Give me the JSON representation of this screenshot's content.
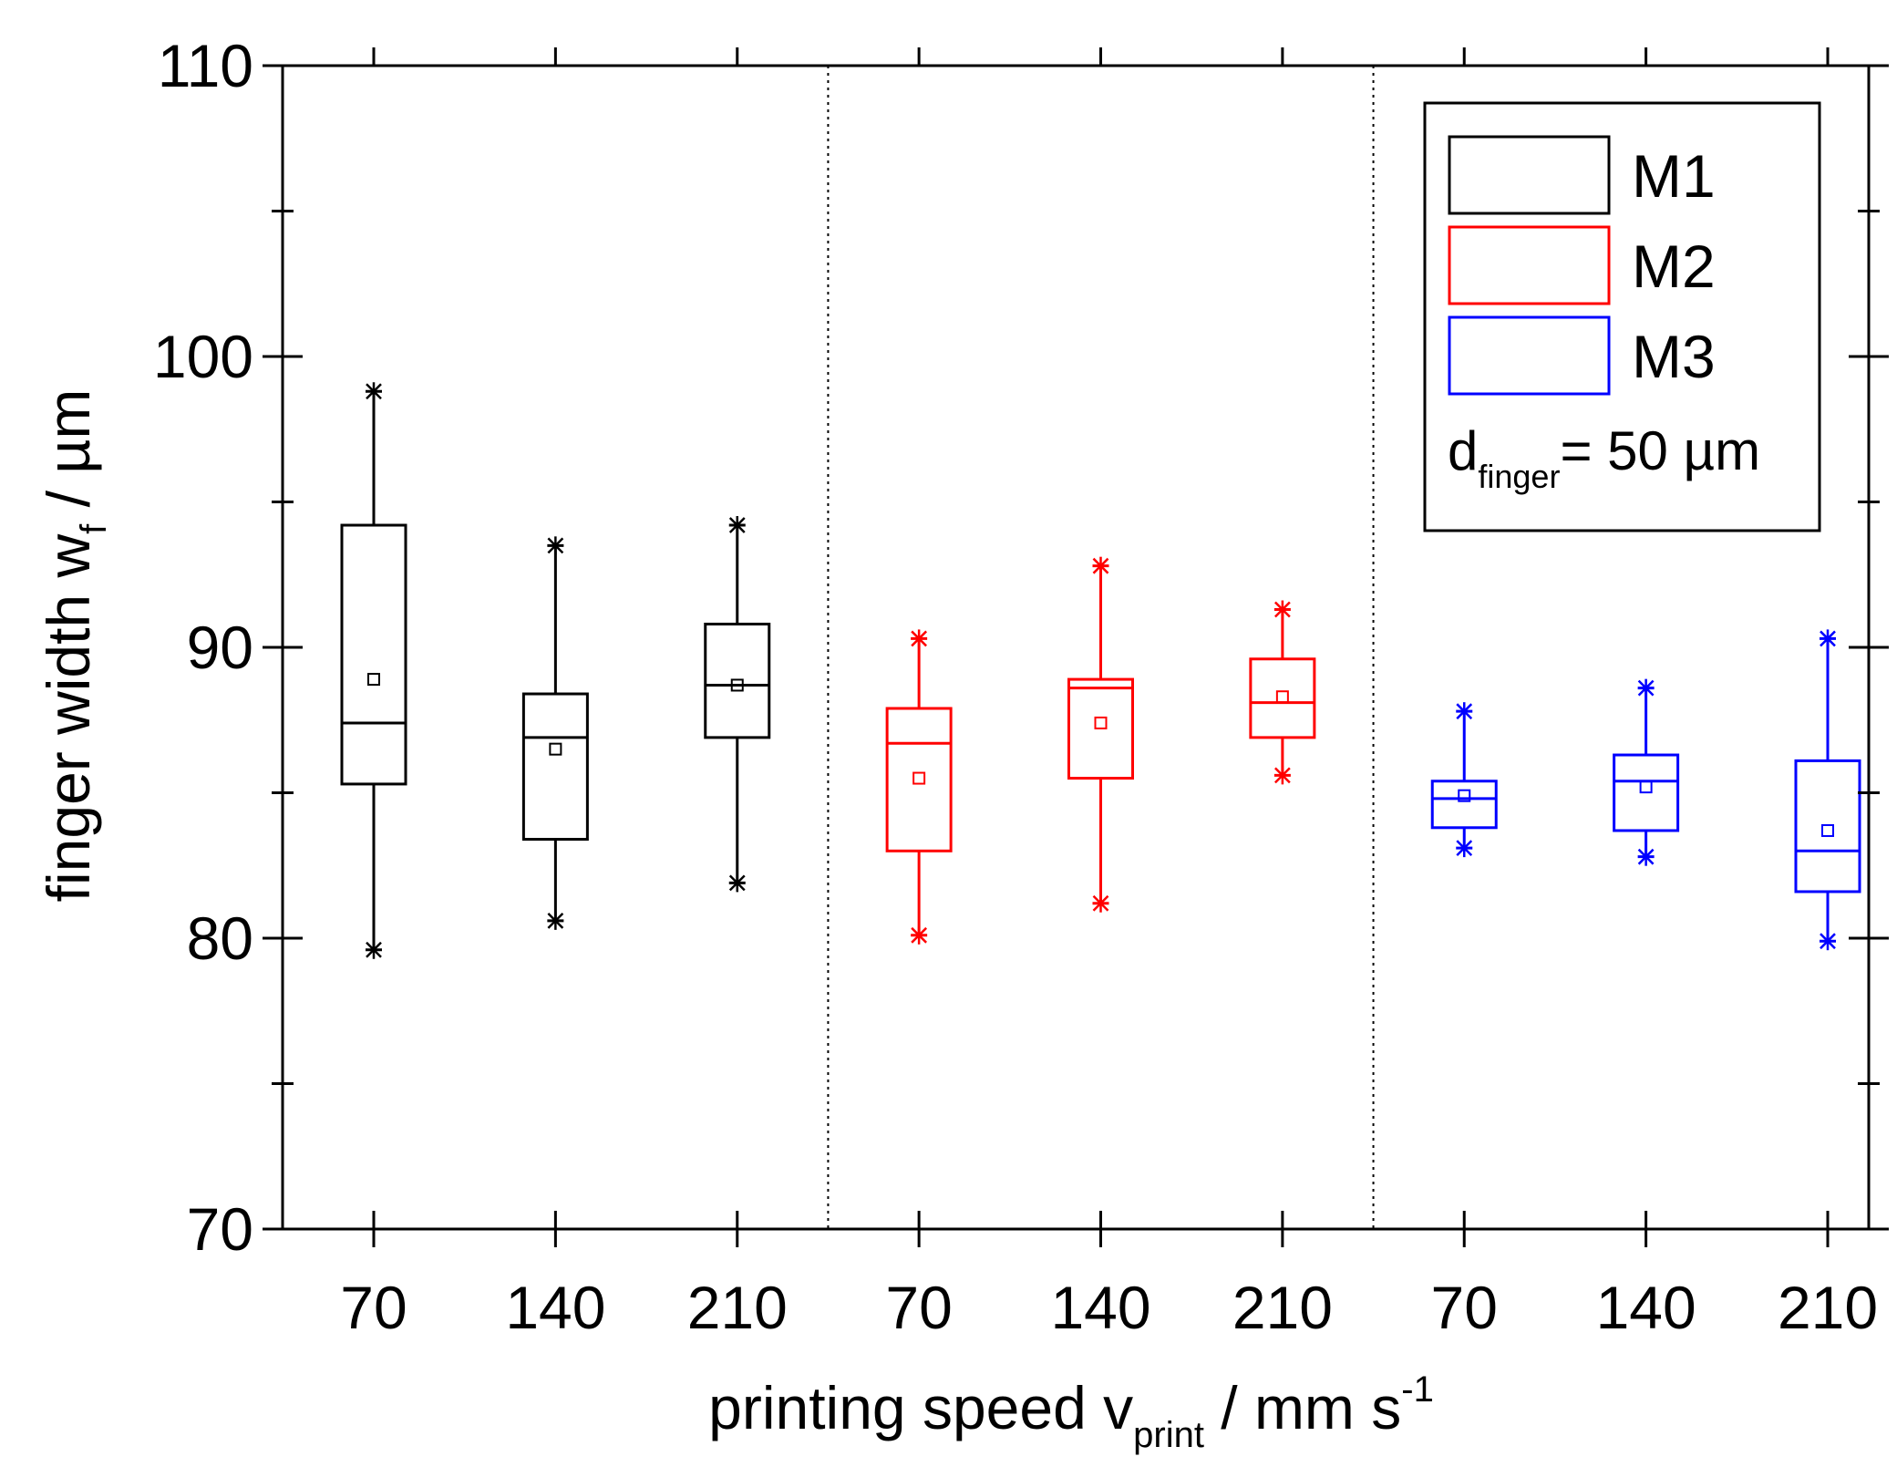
{
  "chart_data": {
    "type": "box",
    "ylabel": {
      "main": "finger width w",
      "sub": "f",
      "tail": " / µm"
    },
    "xlabel": {
      "main": "printing speed v",
      "sub": "print",
      "tail": " / mm s",
      "sup": "-1"
    },
    "ylim": [
      70,
      110
    ],
    "yticks": [
      70,
      80,
      90,
      100,
      110
    ],
    "grid": false,
    "legend_position": "top-right",
    "legend_note": {
      "main": "d",
      "sub": "finger",
      "tail": "= 50 µm"
    },
    "categories": [
      "70",
      "140",
      "210",
      "70",
      "140",
      "210",
      "70",
      "140",
      "210"
    ],
    "series": [
      {
        "name": "M1",
        "color": "#000000",
        "boxes": [
          {
            "x": "70",
            "min": 79.6,
            "q1": 85.3,
            "median": 87.4,
            "q3": 94.2,
            "max": 98.8,
            "mean": 88.9
          },
          {
            "x": "140",
            "min": 80.6,
            "q1": 83.4,
            "median": 86.9,
            "q3": 88.4,
            "max": 93.5,
            "mean": 86.5
          },
          {
            "x": "210",
            "min": 81.9,
            "q1": 86.9,
            "median": 88.7,
            "q3": 90.8,
            "max": 94.2,
            "mean": 88.7
          }
        ]
      },
      {
        "name": "M2",
        "color": "#ff0000",
        "boxes": [
          {
            "x": "70",
            "min": 80.1,
            "q1": 83.0,
            "median": 86.7,
            "q3": 87.9,
            "max": 90.3,
            "mean": 85.5
          },
          {
            "x": "140",
            "min": 81.2,
            "q1": 85.5,
            "median": 88.6,
            "q3": 88.9,
            "max": 92.8,
            "mean": 87.4
          },
          {
            "x": "210",
            "min": 85.6,
            "q1": 86.9,
            "median": 88.1,
            "q3": 89.6,
            "max": 91.3,
            "mean": 88.3
          }
        ]
      },
      {
        "name": "M3",
        "color": "#0000ff",
        "boxes": [
          {
            "x": "70",
            "min": 83.1,
            "q1": 83.8,
            "median": 84.8,
            "q3": 85.4,
            "max": 87.8,
            "mean": 84.9
          },
          {
            "x": "140",
            "min": 82.8,
            "q1": 83.7,
            "median": 85.4,
            "q3": 86.3,
            "max": 88.6,
            "mean": 85.2
          },
          {
            "x": "210",
            "min": 79.9,
            "q1": 81.6,
            "median": 83.0,
            "q3": 86.1,
            "max": 90.3,
            "mean": 83.7
          }
        ]
      }
    ]
  }
}
